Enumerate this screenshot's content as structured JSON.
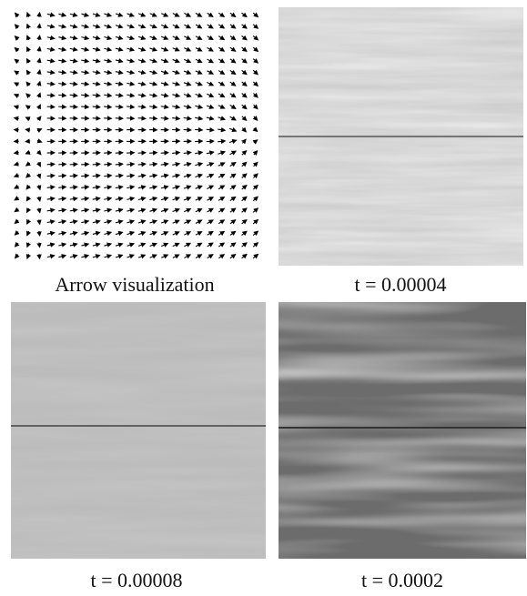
{
  "figure": {
    "panels": [
      {
        "caption": "Arrow visualization"
      },
      {
        "caption": "t = 0.00004"
      },
      {
        "caption": "t = 0.00008"
      },
      {
        "caption": "t = 0.0002"
      }
    ]
  }
}
